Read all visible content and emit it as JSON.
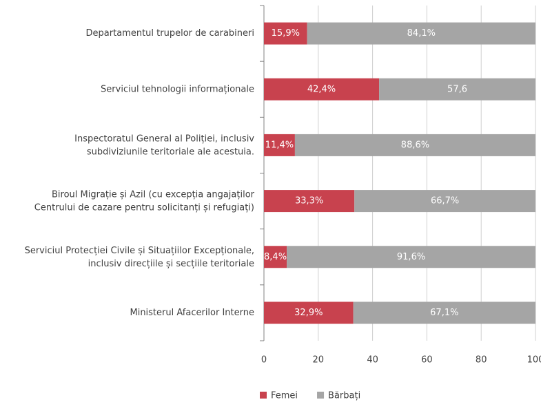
{
  "chart_data": {
    "type": "stacked-bar-horizontal",
    "categories": [
      "Departamentul trupelor de carabineri",
      "Serviciul tehnologii informaționale",
      "Inspectoratul General al Poliției, inclusiv\nsubdiviziunile teritoriale ale acestuia.",
      "Biroul Migrație și Azil (cu excepția angajaților\nCentrului de cazare pentru solicitanți și refugiați)",
      "Serviciul Protecției Civile și Situațiilor Excepționale,\ninclusiv direcțiile și secțiile teritoriale",
      "Ministerul Afacerilor Interne"
    ],
    "series": [
      {
        "name": "Femei",
        "color": "#c8424e",
        "values": [
          15.9,
          42.4,
          11.4,
          33.3,
          8.4,
          32.9
        ],
        "value_labels": [
          "15,9%",
          "42,4%",
          "11,4%",
          "33,3%",
          "8,4%",
          "32,9%"
        ]
      },
      {
        "name": "Bărbați",
        "color": "#a5a5a5",
        "values": [
          84.1,
          57.6,
          88.6,
          66.7,
          91.6,
          67.1
        ],
        "value_labels": [
          "84,1%",
          "57,6",
          "88,6%",
          "66,7%",
          "91,6%",
          "67,1%"
        ]
      }
    ],
    "xlim": [
      0,
      100
    ],
    "xticks": [
      0,
      20,
      40,
      60,
      80,
      100
    ],
    "grid": true,
    "legend": "bottom"
  }
}
